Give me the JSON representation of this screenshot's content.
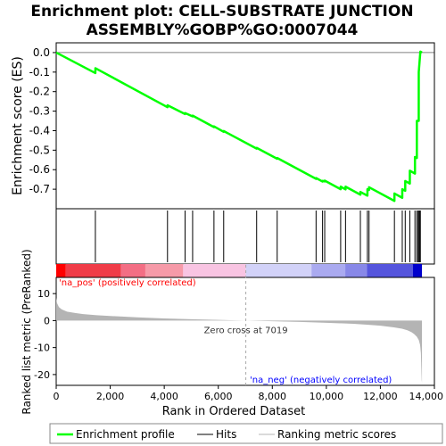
{
  "chart_data": {
    "type": "line",
    "title_line1": "Enrichment plot: CELL-SUBSTRATE JUNCTION",
    "title_line2": "ASSEMBLY%GOBP%GO:0007044",
    "top_panel": {
      "ylabel": "Enrichment score (ES)",
      "ylim": [
        -0.8,
        0.05
      ],
      "yticks": [
        0.0,
        -0.1,
        -0.2,
        -0.3,
        -0.4,
        -0.5,
        -0.6,
        -0.7
      ],
      "ytick_labels": [
        "0.0",
        "-0.1",
        "-0.2",
        "-0.3",
        "-0.4",
        "-0.5",
        "-0.6",
        "-0.7"
      ],
      "line_color": "#00ff00",
      "series": [
        {
          "name": "Enrichment profile",
          "x": [
            0,
            1450,
            1451,
            4120,
            4121,
            4770,
            4771,
            5050,
            5051,
            5840,
            5841,
            6200,
            6201,
            7420,
            7421,
            8180,
            8181,
            9620,
            9621,
            9860,
            9861,
            9940,
            9941,
            10530,
            10531,
            10710,
            10711,
            11260,
            11261,
            11520,
            11521,
            11580,
            11581,
            12520,
            12521,
            12810,
            12811,
            12920,
            12921,
            13090,
            13091,
            13280,
            13281,
            13350,
            13351,
            13420,
            13421,
            13480,
            13540
          ],
          "y": [
            0.0,
            -0.105,
            -0.08,
            -0.28,
            -0.27,
            -0.315,
            -0.31,
            -0.327,
            -0.323,
            -0.382,
            -0.378,
            -0.406,
            -0.402,
            -0.492,
            -0.488,
            -0.544,
            -0.54,
            -0.647,
            -0.643,
            -0.661,
            -0.657,
            -0.66,
            -0.656,
            -0.7,
            -0.687,
            -0.701,
            -0.687,
            -0.728,
            -0.714,
            -0.733,
            -0.7,
            -0.704,
            -0.69,
            -0.76,
            -0.722,
            -0.744,
            -0.7,
            -0.708,
            -0.658,
            -0.671,
            -0.605,
            -0.62,
            -0.535,
            -0.54,
            -0.35,
            -0.35,
            -0.1,
            0.005,
            0.0
          ]
        }
      ]
    },
    "hits": {
      "name": "Hits",
      "x": [
        1450,
        4120,
        4770,
        5050,
        5840,
        6200,
        7420,
        8180,
        9620,
        9860,
        9940,
        10530,
        10710,
        11260,
        11520,
        11580,
        12520,
        12810,
        12920,
        13090,
        13280,
        13350,
        13400,
        13420,
        13450,
        13480
      ]
    },
    "heat_bar": {
      "label_pos": "'na_pos' (positively correlated)",
      "label_neg": "'na_neg' (negatively correlated)",
      "label_pos_color": "#ff0000",
      "label_neg_color": "#0000ff",
      "segments": [
        {
          "from": 0,
          "to": 350,
          "color": "#ff0000"
        },
        {
          "from": 350,
          "to": 2400,
          "color": "#f03c48"
        },
        {
          "from": 2400,
          "to": 3300,
          "color": "#f36e84"
        },
        {
          "from": 3300,
          "to": 4700,
          "color": "#f69aa8"
        },
        {
          "from": 4700,
          "to": 7019,
          "color": "#f8c4e2"
        },
        {
          "from": 7019,
          "to": 9450,
          "color": "#d2d2f8"
        },
        {
          "from": 9450,
          "to": 10700,
          "color": "#aaaaf0"
        },
        {
          "from": 10700,
          "to": 11500,
          "color": "#8888e8"
        },
        {
          "from": 11500,
          "to": 13200,
          "color": "#5555dd"
        },
        {
          "from": 13200,
          "to": 13540,
          "color": "#0000cc"
        }
      ]
    },
    "bottom_panel": {
      "ylabel": "Ranked list metric (PreRanked)",
      "xlabel": "Rank in Ordered Dataset",
      "ylim": [
        -24,
        16
      ],
      "yticks": [
        10,
        0,
        -10,
        -20
      ],
      "ytick_labels": [
        "10",
        "0",
        "-10",
        "-20"
      ],
      "zero_cross": 7019,
      "zero_cross_label": "Zero cross at 7019",
      "metric_x": [
        0,
        30,
        100,
        200,
        400,
        700,
        1000,
        1500,
        2000,
        3000,
        4000,
        5000,
        6000,
        7019,
        8000,
        9000,
        10000,
        11000,
        11500,
        12000,
        12500,
        12800,
        13000,
        13150,
        13250,
        13350,
        13420,
        13470,
        13500,
        13530,
        13540
      ],
      "metric_y": [
        8.5,
        6.5,
        5.0,
        4.2,
        3.3,
        2.8,
        2.4,
        2.0,
        1.7,
        1.2,
        0.8,
        0.5,
        0.25,
        0.0,
        -0.25,
        -0.5,
        -0.8,
        -1.2,
        -1.5,
        -1.9,
        -2.5,
        -3.0,
        -3.6,
        -4.3,
        -5.0,
        -6.0,
        -7.2,
        -9.0,
        -12.0,
        -22.0,
        -23.0
      ],
      "fill_color": "#b4b4b4"
    },
    "x_axis": {
      "xlim": [
        0,
        14000
      ],
      "ticks": [
        0,
        2000,
        4000,
        6000,
        8000,
        10000,
        12000,
        14000
      ],
      "tick_labels": [
        "0",
        "2,000",
        "4,000",
        "6,000",
        "8,000",
        "10,000",
        "12,000",
        "14,000"
      ]
    },
    "legend": {
      "placement": "bottom",
      "items": [
        {
          "label": "Enrichment profile",
          "color": "#00ff00",
          "kind": "thick-line"
        },
        {
          "label": "Hits",
          "color": "#000000",
          "kind": "thin-line"
        },
        {
          "label": "Ranking metric scores",
          "color": "#b4b4b4",
          "kind": "thin-line"
        }
      ]
    }
  }
}
